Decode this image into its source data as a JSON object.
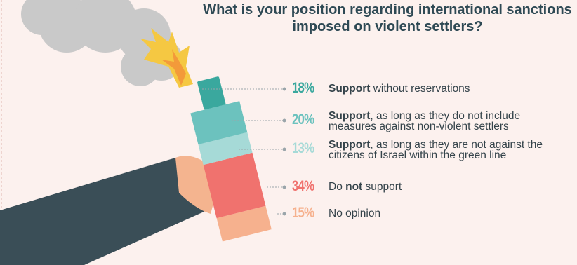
{
  "chart_data": {
    "type": "stacked",
    "title": "What is your position regarding international sanctions imposed on violent settlers?",
    "categories": [
      [
        {
          "text": "Support",
          "bold": true
        },
        {
          "text": " without reservations"
        }
      ],
      [
        {
          "text": "Support",
          "bold": true
        },
        {
          "text": ", as long as they do not include measures against non-violent settlers"
        }
      ],
      [
        {
          "text": "Support",
          "bold": true
        },
        {
          "text": ", as long as they are not against the citizens of Israel within the green line"
        }
      ],
      [
        {
          "text": "Do "
        },
        {
          "text": "not",
          "bold": true
        },
        {
          "text": " support"
        }
      ],
      [
        {
          "text": "No opinion"
        }
      ]
    ],
    "values": [
      18,
      20,
      13,
      34,
      15
    ],
    "value_labels": [
      "18%",
      "20%",
      "13%",
      "34%",
      "15%"
    ],
    "colors": [
      "#3aa89e",
      "#6cc2be",
      "#a6dad7",
      "#f0726e",
      "#f6b18e"
    ]
  }
}
